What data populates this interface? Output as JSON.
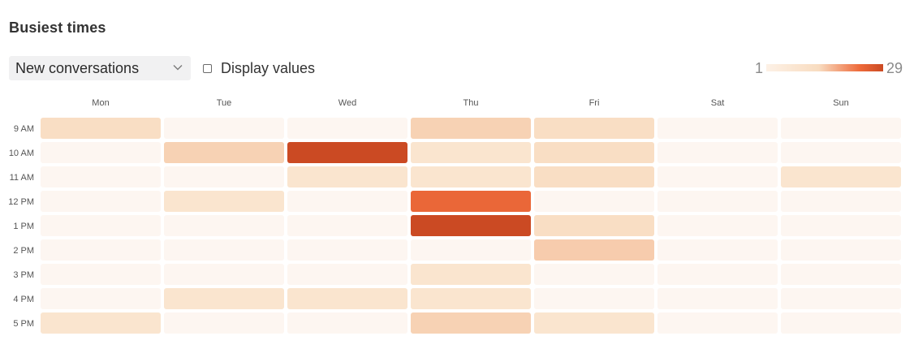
{
  "header": {
    "title": "Busiest times"
  },
  "controls": {
    "metric_select": {
      "selected": "New conversations",
      "icon": "chevron-down-icon"
    },
    "display_values": {
      "label": "Display values",
      "checked": false
    }
  },
  "legend": {
    "min_label": "1",
    "max_label": "29",
    "colors": [
      "#fdf1e6",
      "#f8dcc0",
      "#ee6a3a",
      "#cb4a23"
    ]
  },
  "chart_data": {
    "type": "heatmap",
    "title": "Busiest times",
    "x_categories": [
      "Mon",
      "Tue",
      "Wed",
      "Thu",
      "Fri",
      "Sat",
      "Sun"
    ],
    "y_categories": [
      "9 AM",
      "10 AM",
      "11 AM",
      "12 PM",
      "1 PM",
      "2 PM",
      "3 PM",
      "4 PM",
      "5 PM"
    ],
    "value_range": [
      1,
      29
    ],
    "values": [
      [
        4,
        1,
        1,
        6,
        4,
        1,
        1
      ],
      [
        1,
        6,
        29,
        3,
        4,
        1,
        1
      ],
      [
        1,
        1,
        3,
        3,
        4,
        1,
        3
      ],
      [
        1,
        3,
        1,
        24,
        1,
        1,
        1
      ],
      [
        1,
        1,
        1,
        29,
        4,
        1,
        1
      ],
      [
        1,
        1,
        1,
        1,
        7,
        1,
        1
      ],
      [
        1,
        1,
        1,
        3,
        1,
        1,
        1
      ],
      [
        1,
        3,
        3,
        3,
        1,
        1,
        1
      ],
      [
        3,
        1,
        1,
        6,
        3,
        1,
        1
      ]
    ],
    "show_values": false
  }
}
